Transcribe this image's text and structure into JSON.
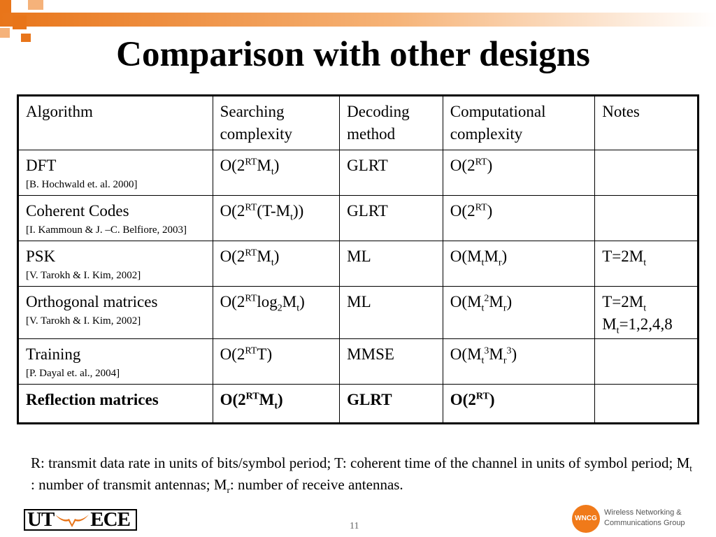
{
  "title": "Comparison with other designs",
  "colors": {
    "accent": "#e8751a",
    "accent_light": "#f5b27a"
  },
  "table": {
    "headers": [
      "Algorithm",
      "Searching complexity",
      "Decoding method",
      "Computational complexity",
      "Notes"
    ],
    "rows": [
      {
        "algorithm": "DFT",
        "reference": "[B. Hochwald et. al. 2000]",
        "search": "O(2^RT M_t)",
        "decoding": "GLRT",
        "computation": "O(2^RT)",
        "notes": ""
      },
      {
        "algorithm": "Coherent Codes",
        "reference": "[I. Kammoun & J. –C. Belfiore, 2003]",
        "search": "O(2^RT (T-M_t))",
        "decoding": "GLRT",
        "computation": "O(2^RT)",
        "notes": ""
      },
      {
        "algorithm": "PSK",
        "reference": "[V. Tarokh & I. Kim, 2002]",
        "search": "O(2^RT M_t)",
        "decoding": "ML",
        "computation": "O(M_t M_r)",
        "notes": "T=2M_t"
      },
      {
        "algorithm": "Orthogonal matrices",
        "reference": "[V. Tarokh & I. Kim, 2002]",
        "search": "O(2^RT log_2 M_t)",
        "decoding": "ML",
        "computation": "O(M_t^2 M_r)",
        "notes": "T=2M_t ; M_t=1,2,4,8"
      },
      {
        "algorithm": "Training",
        "reference": "[P. Dayal et. al., 2004]",
        "search": "O(2^RT T)",
        "decoding": "MMSE",
        "computation": "O(M_t^3 M_r^3)",
        "notes": ""
      },
      {
        "algorithm": "Reflection matrices",
        "reference": "",
        "search": "O(2^RT M_t)",
        "decoding": "GLRT",
        "computation": "O(2^RT)",
        "notes": ""
      }
    ]
  },
  "footnote": "R: transmit data rate in units of bits/symbol period; T: coherent time of the channel in units of symbol period; M_t : number of transmit antennas; M_r: number of receive antennas.",
  "footer": {
    "ut_logo_left": "UT",
    "ut_logo_right": "ECE",
    "page_number": "11",
    "group_badge": "WNCG",
    "group_line1": "Wireless Networking &",
    "group_line2": "Communications Group"
  }
}
